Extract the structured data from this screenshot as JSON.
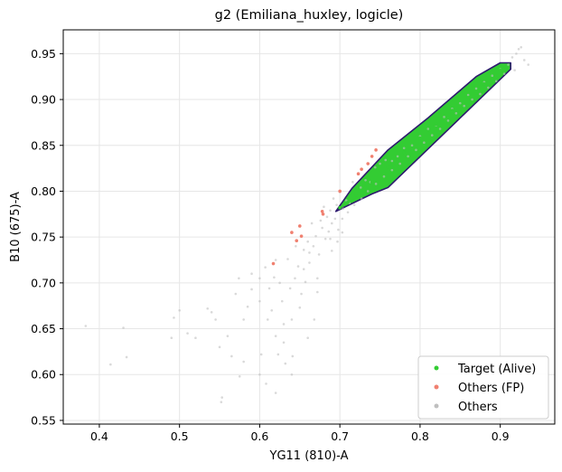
{
  "chart_data": {
    "type": "scatter",
    "title": "g2 (Emiliana_huxley, logicle)",
    "xlabel": "YG11 (810)-A",
    "ylabel": "B10 (675)-A",
    "xlim": [
      0.355,
      0.968
    ],
    "ylim": [
      0.546,
      0.976
    ],
    "xticks": [
      0.4,
      0.5,
      0.6,
      0.7,
      0.8,
      0.9
    ],
    "xtick_labels": [
      "0.4",
      "0.5",
      "0.6",
      "0.7",
      "0.8",
      "0.9"
    ],
    "yticks": [
      0.55,
      0.6,
      0.65,
      0.7,
      0.75,
      0.8,
      0.85,
      0.9,
      0.95
    ],
    "ytick_labels": [
      "0.55",
      "0.60",
      "0.65",
      "0.70",
      "0.75",
      "0.80",
      "0.85",
      "0.90",
      "0.95"
    ],
    "grid": true,
    "legend_position": "bottom-right",
    "gate": {
      "fill_color": "#33cc33",
      "edge_color": "#2e1a6e",
      "polygon": [
        [
          0.695,
          0.778
        ],
        [
          0.715,
          0.803
        ],
        [
          0.76,
          0.845
        ],
        [
          0.81,
          0.88
        ],
        [
          0.87,
          0.925
        ],
        [
          0.9,
          0.94
        ],
        [
          0.913,
          0.94
        ],
        [
          0.913,
          0.933
        ],
        [
          0.76,
          0.804
        ],
        [
          0.74,
          0.797
        ]
      ]
    },
    "series": [
      {
        "name": "Others",
        "color": "#bfbfbf",
        "points": [
          [
            0.383,
            0.653
          ],
          [
            0.414,
            0.611
          ],
          [
            0.43,
            0.651
          ],
          [
            0.434,
            0.619
          ],
          [
            0.5,
            0.67
          ],
          [
            0.49,
            0.64
          ],
          [
            0.493,
            0.662
          ],
          [
            0.51,
            0.645
          ],
          [
            0.52,
            0.64
          ],
          [
            0.535,
            0.672
          ],
          [
            0.54,
            0.668
          ],
          [
            0.545,
            0.66
          ],
          [
            0.552,
            0.57
          ],
          [
            0.553,
            0.575
          ],
          [
            0.56,
            0.642
          ],
          [
            0.57,
            0.688
          ],
          [
            0.575,
            0.598
          ],
          [
            0.58,
            0.614
          ],
          [
            0.585,
            0.674
          ],
          [
            0.59,
            0.693
          ],
          [
            0.6,
            0.6
          ],
          [
            0.6,
            0.705
          ],
          [
            0.602,
            0.622
          ],
          [
            0.607,
            0.717
          ],
          [
            0.61,
            0.66
          ],
          [
            0.612,
            0.694
          ],
          [
            0.618,
            0.706
          ],
          [
            0.62,
            0.642
          ],
          [
            0.623,
            0.622
          ],
          [
            0.625,
            0.7
          ],
          [
            0.628,
            0.68
          ],
          [
            0.63,
            0.635
          ],
          [
            0.632,
            0.612
          ],
          [
            0.635,
            0.726
          ],
          [
            0.638,
            0.694
          ],
          [
            0.64,
            0.66
          ],
          [
            0.641,
            0.62
          ],
          [
            0.645,
            0.74
          ],
          [
            0.648,
            0.718
          ],
          [
            0.65,
            0.673
          ],
          [
            0.652,
            0.688
          ],
          [
            0.655,
            0.736
          ],
          [
            0.657,
            0.701
          ],
          [
            0.66,
            0.745
          ],
          [
            0.662,
            0.722
          ],
          [
            0.665,
            0.765
          ],
          [
            0.667,
            0.74
          ],
          [
            0.67,
            0.751
          ],
          [
            0.672,
            0.705
          ],
          [
            0.674,
            0.731
          ],
          [
            0.676,
            0.768
          ],
          [
            0.678,
            0.76
          ],
          [
            0.68,
            0.783
          ],
          [
            0.682,
            0.748
          ],
          [
            0.684,
            0.772
          ],
          [
            0.686,
            0.756
          ],
          [
            0.688,
            0.779
          ],
          [
            0.69,
            0.765
          ],
          [
            0.692,
            0.792
          ],
          [
            0.694,
            0.77
          ],
          [
            0.696,
            0.785
          ],
          [
            0.698,
            0.758
          ],
          [
            0.7,
            0.799
          ],
          [
            0.704,
            0.781
          ],
          [
            0.708,
            0.79
          ],
          [
            0.712,
            0.787
          ],
          [
            0.716,
            0.81
          ],
          [
            0.72,
            0.796
          ],
          [
            0.726,
            0.804
          ],
          [
            0.732,
            0.812
          ],
          [
            0.738,
            0.81
          ],
          [
            0.744,
            0.826
          ],
          [
            0.75,
            0.83
          ],
          [
            0.757,
            0.834
          ],
          [
            0.765,
            0.833
          ],
          [
            0.772,
            0.838
          ],
          [
            0.78,
            0.847
          ],
          [
            0.79,
            0.85
          ],
          [
            0.8,
            0.86
          ],
          [
            0.81,
            0.868
          ],
          [
            0.82,
            0.872
          ],
          [
            0.83,
            0.881
          ],
          [
            0.84,
            0.89
          ],
          [
            0.85,
            0.896
          ],
          [
            0.86,
            0.905
          ],
          [
            0.87,
            0.912
          ],
          [
            0.88,
            0.919
          ],
          [
            0.89,
            0.926
          ],
          [
            0.9,
            0.933
          ],
          [
            0.91,
            0.938
          ],
          [
            0.915,
            0.946
          ],
          [
            0.92,
            0.95
          ],
          [
            0.923,
            0.955
          ],
          [
            0.926,
            0.957
          ],
          [
            0.918,
            0.932
          ],
          [
            0.93,
            0.943
          ],
          [
            0.935,
            0.938
          ],
          [
            0.905,
            0.928
          ],
          [
            0.895,
            0.92
          ],
          [
            0.885,
            0.913
          ],
          [
            0.875,
            0.906
          ],
          [
            0.865,
            0.9
          ],
          [
            0.855,
            0.893
          ],
          [
            0.845,
            0.885
          ],
          [
            0.835,
            0.877
          ],
          [
            0.825,
            0.868
          ],
          [
            0.815,
            0.861
          ],
          [
            0.805,
            0.853
          ],
          [
            0.795,
            0.845
          ],
          [
            0.785,
            0.838
          ],
          [
            0.775,
            0.83
          ],
          [
            0.765,
            0.823
          ],
          [
            0.755,
            0.816
          ],
          [
            0.745,
            0.808
          ],
          [
            0.735,
            0.8
          ],
          [
            0.727,
            0.792
          ],
          [
            0.718,
            0.785
          ],
          [
            0.71,
            0.777
          ],
          [
            0.703,
            0.77
          ],
          [
            0.608,
            0.59
          ],
          [
            0.62,
            0.58
          ],
          [
            0.64,
            0.6
          ],
          [
            0.66,
            0.64
          ],
          [
            0.668,
            0.66
          ],
          [
            0.672,
            0.69
          ],
          [
            0.63,
            0.655
          ],
          [
            0.615,
            0.67
          ],
          [
            0.6,
            0.68
          ],
          [
            0.58,
            0.66
          ],
          [
            0.565,
            0.62
          ],
          [
            0.55,
            0.63
          ],
          [
            0.574,
            0.705
          ],
          [
            0.59,
            0.71
          ],
          [
            0.62,
            0.725
          ],
          [
            0.644,
            0.705
          ],
          [
            0.655,
            0.715
          ],
          [
            0.662,
            0.733
          ],
          [
            0.688,
            0.748
          ],
          [
            0.69,
            0.735
          ],
          [
            0.697,
            0.745
          ],
          [
            0.703,
            0.755
          ]
        ]
      },
      {
        "name": "Others (FP)",
        "color": "#f08070",
        "points": [
          [
            0.617,
            0.721
          ],
          [
            0.64,
            0.755
          ],
          [
            0.646,
            0.746
          ],
          [
            0.65,
            0.762
          ],
          [
            0.652,
            0.751
          ],
          [
            0.678,
            0.778
          ],
          [
            0.679,
            0.775
          ],
          [
            0.7,
            0.8
          ],
          [
            0.723,
            0.819
          ],
          [
            0.727,
            0.824
          ],
          [
            0.735,
            0.83
          ],
          [
            0.74,
            0.838
          ],
          [
            0.745,
            0.845
          ]
        ]
      },
      {
        "name": "Target (Alive)",
        "color": "#33cc33",
        "points": [
          [
            0.7,
            0.782
          ],
          [
            0.71,
            0.788
          ],
          [
            0.72,
            0.796
          ],
          [
            0.74,
            0.81
          ],
          [
            0.76,
            0.826
          ],
          [
            0.78,
            0.842
          ],
          [
            0.8,
            0.858
          ],
          [
            0.82,
            0.873
          ],
          [
            0.84,
            0.888
          ],
          [
            0.86,
            0.902
          ],
          [
            0.88,
            0.917
          ],
          [
            0.9,
            0.932
          ]
        ]
      }
    ],
    "legend": [
      "Target (Alive)",
      "Others (FP)",
      "Others"
    ]
  }
}
